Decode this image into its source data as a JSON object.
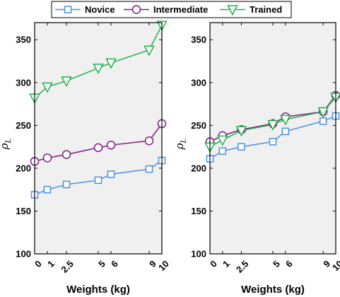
{
  "chart_data": [
    {
      "type": "line",
      "panel": "left",
      "xlabel": "Weights (kg)",
      "ylabel": "ρ",
      "ylabel_subscript": "L",
      "x": [
        0,
        1,
        2.5,
        5,
        6,
        9,
        10
      ],
      "x_tick_labels": [
        "0",
        "1",
        "2.5",
        "5",
        "6",
        "9",
        "10"
      ],
      "xlim": [
        0,
        10
      ],
      "ylim": [
        100,
        370
      ],
      "y_ticks": [
        100,
        150,
        200,
        250,
        300,
        350
      ],
      "grid": false,
      "background": "#f0f0f0",
      "series": [
        {
          "name": "Novice",
          "color": "#4a90e2",
          "marker": "square",
          "values": [
            169,
            175,
            181,
            186,
            193,
            199,
            209
          ]
        },
        {
          "name": "Intermediate",
          "color": "#7e1e80",
          "marker": "circle",
          "values": [
            208,
            212,
            216,
            224,
            227,
            232,
            252
          ]
        },
        {
          "name": "Trained",
          "color": "#22b04a",
          "marker": "triangle-down",
          "values": [
            282,
            295,
            302,
            317,
            323,
            338,
            367
          ]
        }
      ]
    },
    {
      "type": "line",
      "panel": "right",
      "xlabel": "Weights (kg)",
      "ylabel": "ρ",
      "ylabel_subscript": "L",
      "x": [
        0,
        1,
        2.5,
        5,
        6,
        9,
        10
      ],
      "x_tick_labels": [
        "0",
        "1",
        "2.5",
        "5",
        "6",
        "9",
        "10"
      ],
      "xlim": [
        0,
        10
      ],
      "ylim": [
        100,
        370
      ],
      "y_ticks": [
        100,
        150,
        200,
        250,
        300,
        350
      ],
      "grid": false,
      "background": "#f0f0f0",
      "series": [
        {
          "name": "Novice",
          "color": "#4a90e2",
          "marker": "square",
          "values": [
            211,
            220,
            225,
            231,
            243,
            255,
            261
          ]
        },
        {
          "name": "Intermediate",
          "color": "#7e1e80",
          "marker": "circle",
          "values": [
            231,
            238,
            245,
            252,
            260,
            266,
            285
          ]
        },
        {
          "name": "Trained",
          "color": "#22b04a",
          "marker": "triangle-down",
          "values": [
            225,
            233,
            244,
            251,
            257,
            266,
            283
          ]
        }
      ]
    }
  ],
  "legend": {
    "placement": "top-center",
    "orientation": "horizontal",
    "entries": [
      "Novice",
      "Intermediate",
      "Trained"
    ]
  }
}
